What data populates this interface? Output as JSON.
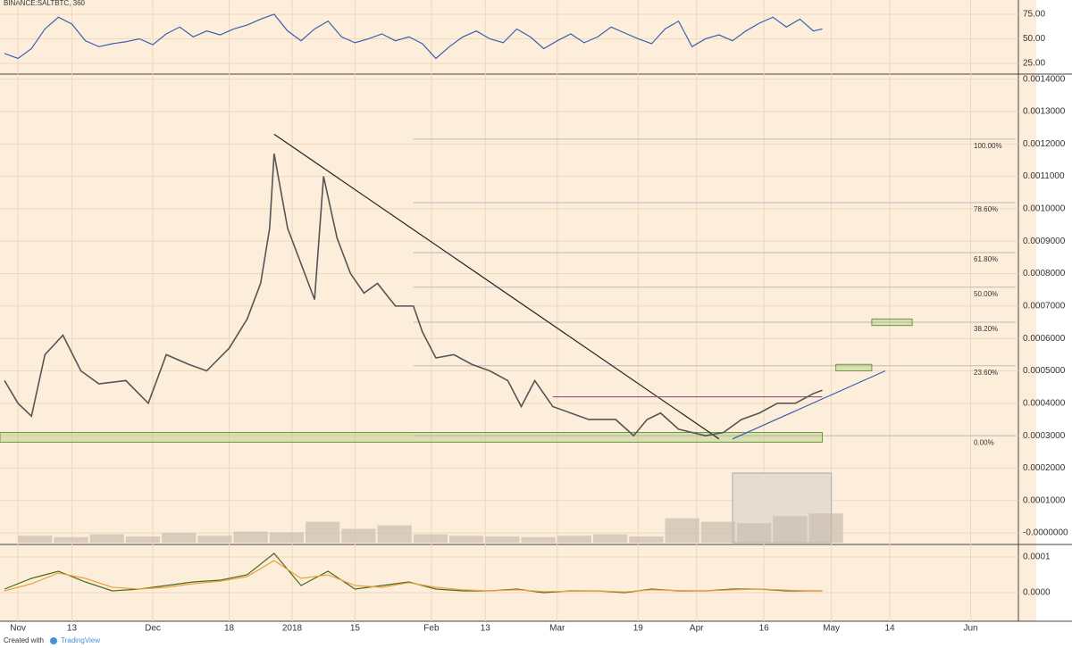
{
  "header": {
    "symbol": "BINANCE:SALTBTC, 360"
  },
  "footer": {
    "created": "Created with",
    "brand": "TradingView"
  },
  "chart_data": [
    {
      "type": "line",
      "name": "rsi",
      "color": "#3a5fb0",
      "x": [
        -3,
        0,
        3,
        6,
        9,
        12,
        15,
        18,
        21,
        24,
        27,
        30,
        33,
        36,
        39,
        42,
        45,
        48,
        51,
        54,
        57,
        60,
        63,
        66,
        69,
        72,
        75,
        78,
        81,
        84,
        87,
        90,
        93,
        96,
        99,
        102,
        105,
        108,
        111,
        114,
        117,
        120,
        123,
        126,
        129,
        132,
        135,
        138,
        141,
        144,
        147,
        150,
        153,
        156,
        159,
        162,
        165,
        168,
        171,
        174,
        177,
        179
      ],
      "values": [
        35,
        30,
        40,
        60,
        72,
        65,
        48,
        42,
        45,
        47,
        50,
        44,
        55,
        62,
        52,
        58,
        54,
        60,
        64,
        70,
        75,
        58,
        48,
        60,
        68,
        52,
        46,
        50,
        55,
        48,
        52,
        45,
        30,
        42,
        52,
        58,
        50,
        46,
        60,
        52,
        40,
        48,
        55,
        46,
        52,
        62,
        56,
        50,
        45,
        60,
        68,
        42,
        50,
        54,
        48,
        58,
        66,
        72,
        62,
        70,
        58,
        60
      ],
      "ylim": [
        15,
        89.5
      ],
      "yticks": [
        {
          "value": 75,
          "label": "75.00"
        },
        {
          "value": 50,
          "label": "50.00"
        },
        {
          "value": 25,
          "label": "25.00"
        }
      ]
    },
    {
      "type": "line",
      "name": "price",
      "color": "#555555",
      "x": [
        -3,
        0,
        3,
        6,
        10,
        14,
        18,
        24,
        29,
        33,
        38,
        42,
        47,
        51,
        54,
        56,
        57,
        60,
        63,
        66,
        68,
        71,
        74,
        77,
        80,
        84,
        88,
        90,
        93,
        97,
        101,
        105,
        109,
        112,
        115,
        119,
        123,
        127,
        133,
        137,
        140,
        143,
        147,
        153,
        157,
        161,
        165,
        169,
        173,
        177,
        179
      ],
      "values": [
        0.00047,
        0.0004,
        0.00036,
        0.00055,
        0.00061,
        0.0005,
        0.00046,
        0.00047,
        0.0004,
        0.00055,
        0.00052,
        0.0005,
        0.00057,
        0.00066,
        0.00077,
        0.00094,
        0.00117,
        0.00094,
        0.00083,
        0.00072,
        0.0011,
        0.00091,
        0.0008,
        0.00074,
        0.00077,
        0.0007,
        0.0007,
        0.00062,
        0.00054,
        0.00055,
        0.00052,
        0.0005,
        0.00047,
        0.00039,
        0.00047,
        0.00039,
        0.00037,
        0.00035,
        0.00035,
        0.0003,
        0.00035,
        0.00037,
        0.00032,
        0.0003,
        0.00031,
        0.00035,
        0.00037,
        0.0004,
        0.0004,
        0.00043,
        0.00044
      ],
      "ylim": [
        -3e-05,
        0.00141
      ],
      "yticks": [
        {
          "value": 0.0014,
          "label": "0.0014000"
        },
        {
          "value": 0.0013,
          "label": "0.0013000"
        },
        {
          "value": 0.0012,
          "label": "0.0012000"
        },
        {
          "value": 0.0011,
          "label": "0.0011000"
        },
        {
          "value": 0.001,
          "label": "0.0010000"
        },
        {
          "value": 0.0009,
          "label": "0.0009000"
        },
        {
          "value": 0.0008,
          "label": "0.0008000"
        },
        {
          "value": 0.0007,
          "label": "0.0007000"
        },
        {
          "value": 0.0006,
          "label": "0.0006000"
        },
        {
          "value": 0.0005,
          "label": "0.0005000"
        },
        {
          "value": 0.0004,
          "label": "0.0004000"
        },
        {
          "value": 0.0003,
          "label": "0.0003000"
        },
        {
          "value": 0.0002,
          "label": "0.0002000"
        },
        {
          "value": 0.0001,
          "label": "0.0001000"
        },
        {
          "value": 0,
          "label": "-0.0000000"
        }
      ],
      "xlim": [
        -4,
        226.6
      ],
      "xticks": [
        {
          "value": 0,
          "label": "Nov"
        },
        {
          "value": 12,
          "label": "13"
        },
        {
          "value": 30,
          "label": "Dec"
        },
        {
          "value": 47,
          "label": "18"
        },
        {
          "value": 61,
          "label": "2018"
        },
        {
          "value": 75,
          "label": "15"
        },
        {
          "value": 92,
          "label": "Feb"
        },
        {
          "value": 104,
          "label": "13"
        },
        {
          "value": 120,
          "label": "Mar"
        },
        {
          "value": 138,
          "label": "19"
        },
        {
          "value": 151,
          "label": "Apr"
        },
        {
          "value": 166,
          "label": "16"
        },
        {
          "value": 181,
          "label": "May"
        },
        {
          "value": 194,
          "label": "14"
        },
        {
          "value": 212,
          "label": "Jun"
        }
      ],
      "fib": {
        "x": [
          88,
          222
        ],
        "levels": [
          {
            "label": "100.00%",
            "value": 0.001215
          },
          {
            "label": "78.60%",
            "value": 0.001019
          },
          {
            "label": "61.80%",
            "value": 0.000865
          },
          {
            "label": "50.00%",
            "value": 0.000758
          },
          {
            "label": "38.20%",
            "value": 0.00065
          },
          {
            "label": "23.60%",
            "value": 0.000516
          },
          {
            "label": "0.00%",
            "value": 0.0003
          }
        ]
      },
      "drawings": [
        {
          "type": "box",
          "x": [
            -4,
            179
          ],
          "y": [
            0.00028,
            0.00031
          ],
          "color": "#9bc26b"
        },
        {
          "type": "box",
          "x": [
            182,
            190
          ],
          "y": [
            0.0005,
            0.00052
          ],
          "color": "#9bc26b"
        },
        {
          "type": "box",
          "x": [
            190,
            199
          ],
          "y": [
            0.00064,
            0.00066
          ],
          "color": "#9bc26b"
        },
        {
          "type": "line",
          "x": [
            57,
            156
          ],
          "y": [
            0.00123,
            0.00029
          ],
          "color": "#222222"
        },
        {
          "type": "line",
          "x": [
            119,
            179
          ],
          "y": [
            0.00042,
            0.00042
          ],
          "color": "#8a5a78"
        },
        {
          "type": "line",
          "x": [
            159,
            193
          ],
          "y": [
            0.00029,
            0.0005
          ],
          "color": "#3a5fb0"
        }
      ],
      "volume": {
        "x": [
          0,
          8,
          16,
          24,
          32,
          40,
          48,
          56,
          64,
          72,
          80,
          88,
          96,
          104,
          112,
          120,
          128,
          136,
          144,
          152,
          160,
          168,
          176
        ],
        "values": [
          10,
          8,
          12,
          9,
          14,
          10,
          16,
          15,
          30,
          20,
          25,
          12,
          10,
          9,
          8,
          10,
          12,
          9,
          35,
          30,
          28,
          38,
          42
        ],
        "ylim": [
          0,
          100
        ],
        "color": "#c9bdb0",
        "highlight": [
          159,
          181
        ]
      }
    },
    {
      "type": "line",
      "name": "oscillator",
      "x": [
        -3,
        3,
        9,
        15,
        21,
        27,
        33,
        39,
        45,
        51,
        57,
        63,
        69,
        75,
        81,
        87,
        93,
        99,
        105,
        111,
        117,
        123,
        129,
        135,
        141,
        147,
        153,
        159,
        165,
        171,
        177,
        179
      ],
      "series": [
        {
          "color": "#4a6a1a",
          "values": [
            1e-05,
            4e-05,
            6e-05,
            3e-05,
            5e-06,
            1e-05,
            2e-05,
            3e-05,
            3.5e-05,
            5e-05,
            0.00011,
            2e-05,
            6e-05,
            1e-05,
            2e-05,
            3e-05,
            1e-05,
            5e-06,
            5e-06,
            1e-05,
            0,
            5e-06,
            5e-06,
            0,
            1e-05,
            5e-06,
            5e-06,
            1e-05,
            1e-05,
            5e-06,
            5e-06,
            5e-06
          ]
        },
        {
          "color": "#e8a040",
          "values": [
            5e-06,
            2.5e-05,
            5.5e-05,
            4e-05,
            1.5e-05,
            1e-05,
            1.5e-05,
            2.5e-05,
            3.2e-05,
            4.5e-05,
            9e-05,
            4e-05,
            5e-05,
            2e-05,
            1.5e-05,
            2.8e-05,
            1.5e-05,
            8e-06,
            5e-06,
            8e-06,
            3e-06,
            4e-06,
            5e-06,
            2e-06,
            8e-06,
            6e-06,
            5e-06,
            8e-06,
            1e-05,
            7e-06,
            5e-06,
            5e-06
          ]
        }
      ],
      "ylim": [
        -7.75e-05,
        0.00013
      ],
      "yticks": [
        {
          "value": 0.0001,
          "label": "0.0001"
        },
        {
          "value": 0,
          "label": "0.0000"
        }
      ]
    }
  ]
}
